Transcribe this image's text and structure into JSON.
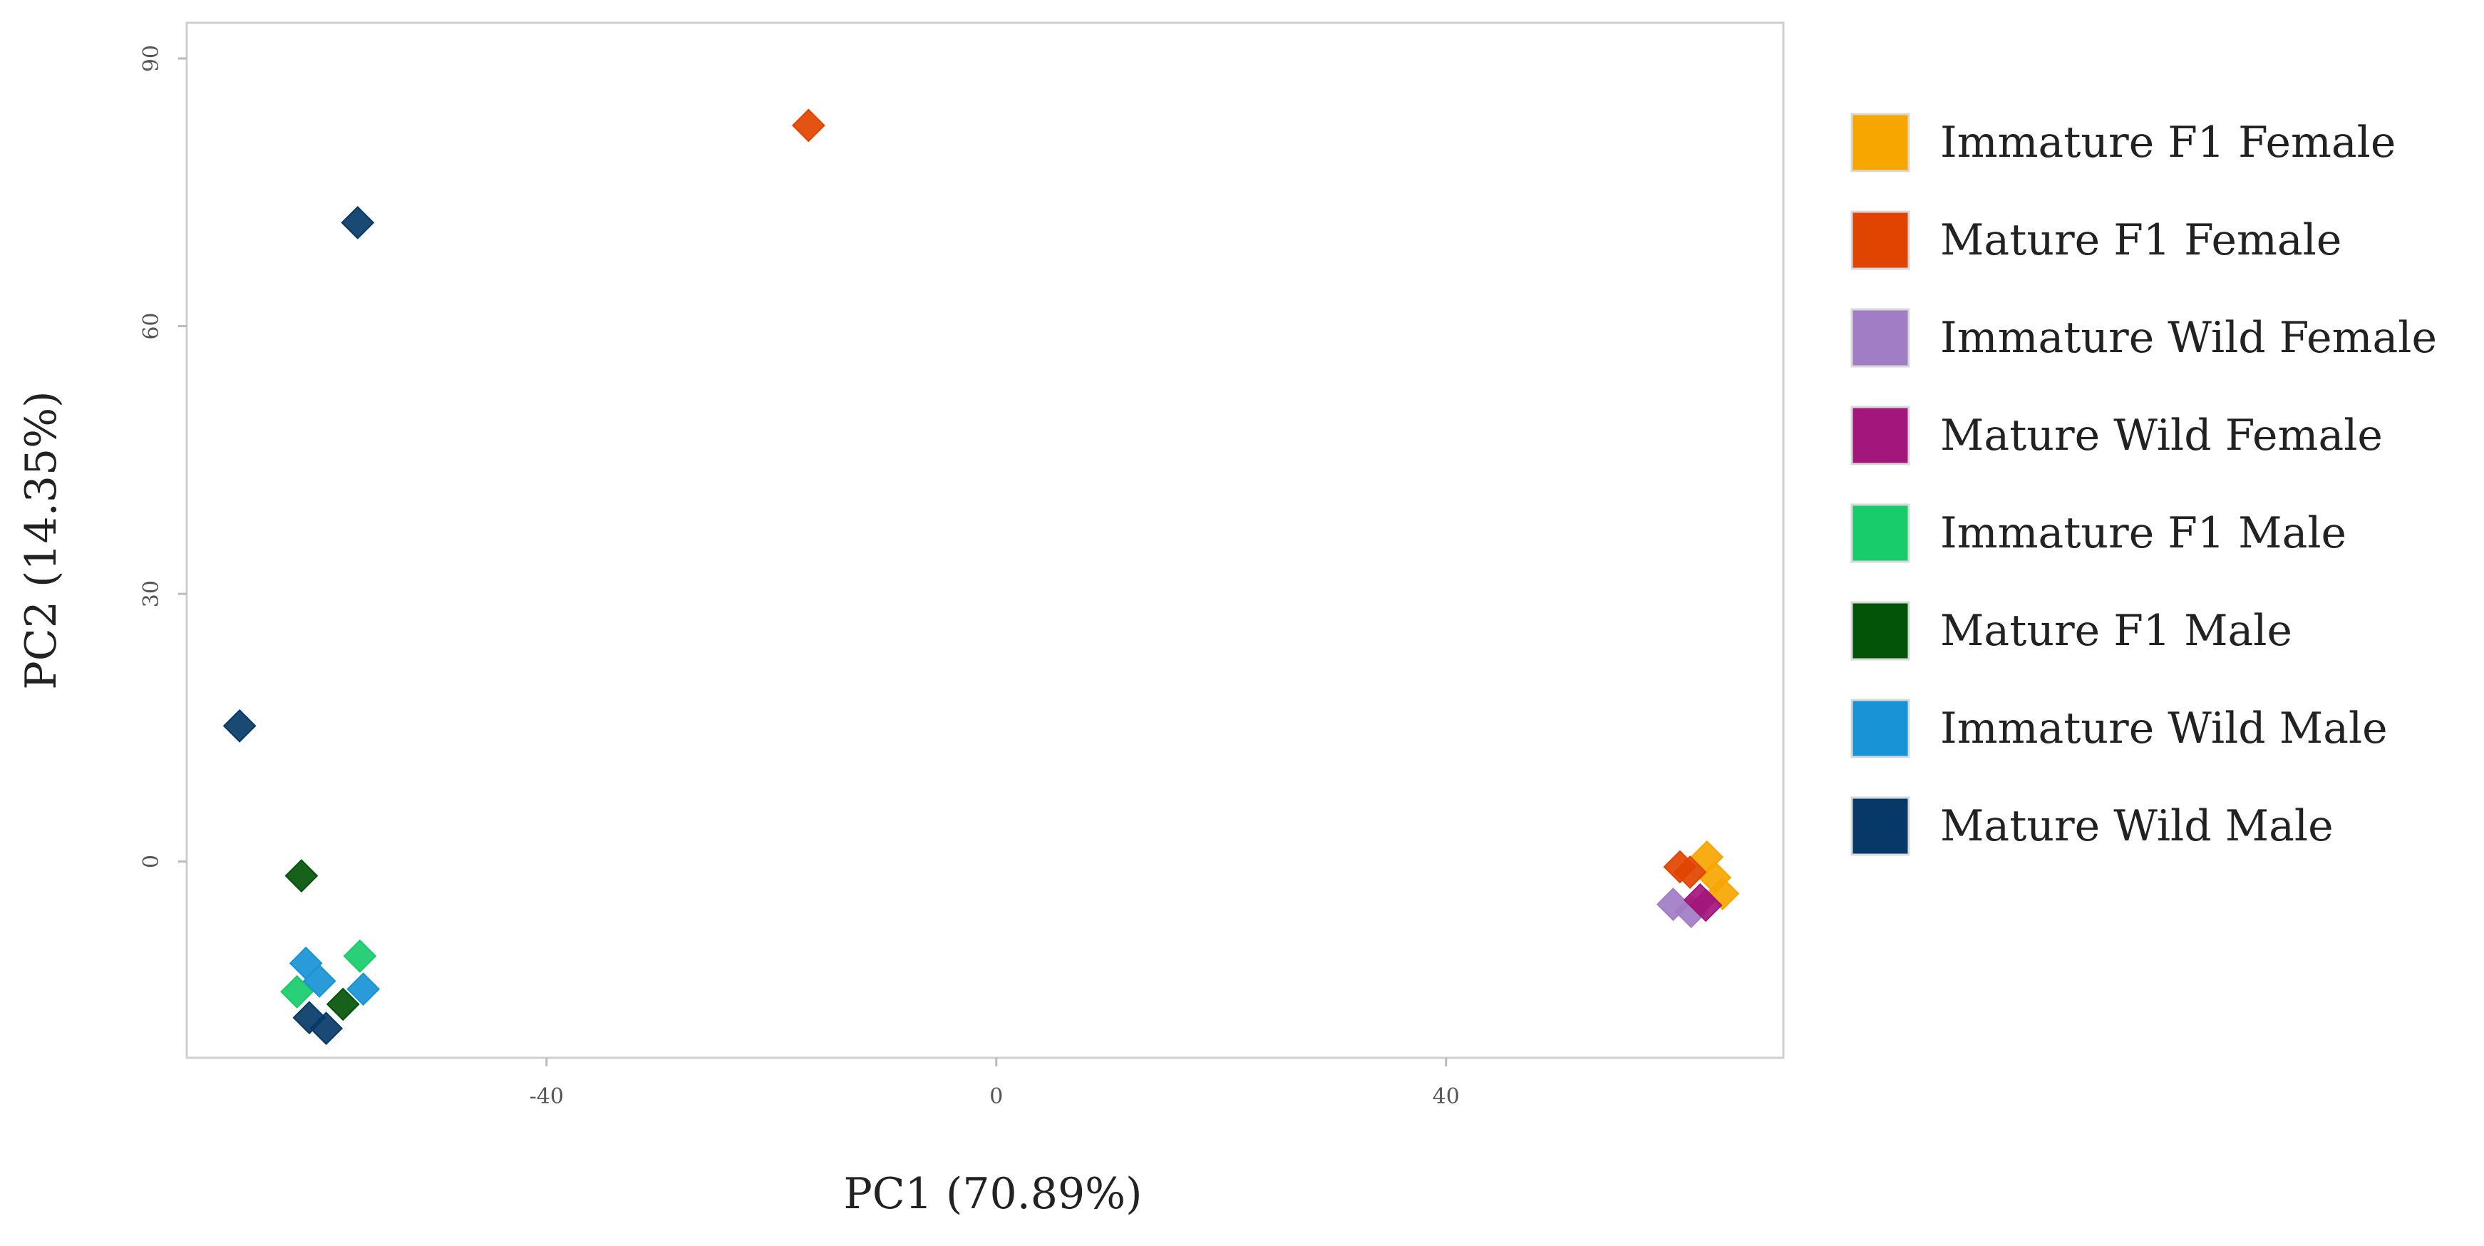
{
  "chart_data": {
    "type": "scatter",
    "title": "",
    "xlabel": "PC1 (70.89%)",
    "ylabel": "PC2 (14.35%)",
    "xlim": [
      -72,
      70
    ],
    "ylim": [
      -22,
      94
    ],
    "x_ticks": [
      -40,
      0,
      40
    ],
    "y_ticks": [
      0,
      30,
      60,
      90
    ],
    "x_tick_labels": [
      "-40",
      "0",
      "40"
    ],
    "y_tick_labels": [
      "0",
      "30",
      "60",
      "90"
    ],
    "grid": false,
    "legend_position": "right",
    "marker": "diamond",
    "series": [
      {
        "name": "Immature F1 Female",
        "color": "#F7A600",
        "points": [
          [
            63.2,
            0.5
          ],
          [
            63.9,
            -1.8
          ],
          [
            64.6,
            -3.6
          ]
        ]
      },
      {
        "name": "Mature F1 Female",
        "color": "#E14400",
        "points": [
          [
            -16.7,
            82.5
          ],
          [
            60.8,
            -0.6
          ],
          [
            61.7,
            -1.2
          ]
        ]
      },
      {
        "name": "Immature Wild Female",
        "color": "#A07DC5",
        "points": [
          [
            60.2,
            -4.8
          ],
          [
            61.8,
            -5.6
          ]
        ]
      },
      {
        "name": "Mature Wild Female",
        "color": "#A3177C",
        "points": [
          [
            62.6,
            -4.3
          ],
          [
            63.1,
            -4.9
          ]
        ]
      },
      {
        "name": "Immature F1 Male",
        "color": "#18CC6B",
        "points": [
          [
            -56.6,
            -10.6
          ],
          [
            -62.2,
            -14.6
          ]
        ]
      },
      {
        "name": "Mature F1 Male",
        "color": "#035408",
        "points": [
          [
            -61.8,
            -1.6
          ],
          [
            -58.1,
            -16.0
          ]
        ]
      },
      {
        "name": "Immature Wild Male",
        "color": "#1793D6",
        "points": [
          [
            -61.4,
            -11.4
          ],
          [
            -60.2,
            -13.4
          ],
          [
            -56.3,
            -14.3
          ]
        ]
      },
      {
        "name": "Mature Wild Male",
        "color": "#063967",
        "points": [
          [
            -56.8,
            71.6
          ],
          [
            -67.3,
            15.2
          ],
          [
            -61.1,
            -17.5
          ],
          [
            -59.6,
            -18.7
          ]
        ]
      }
    ]
  }
}
